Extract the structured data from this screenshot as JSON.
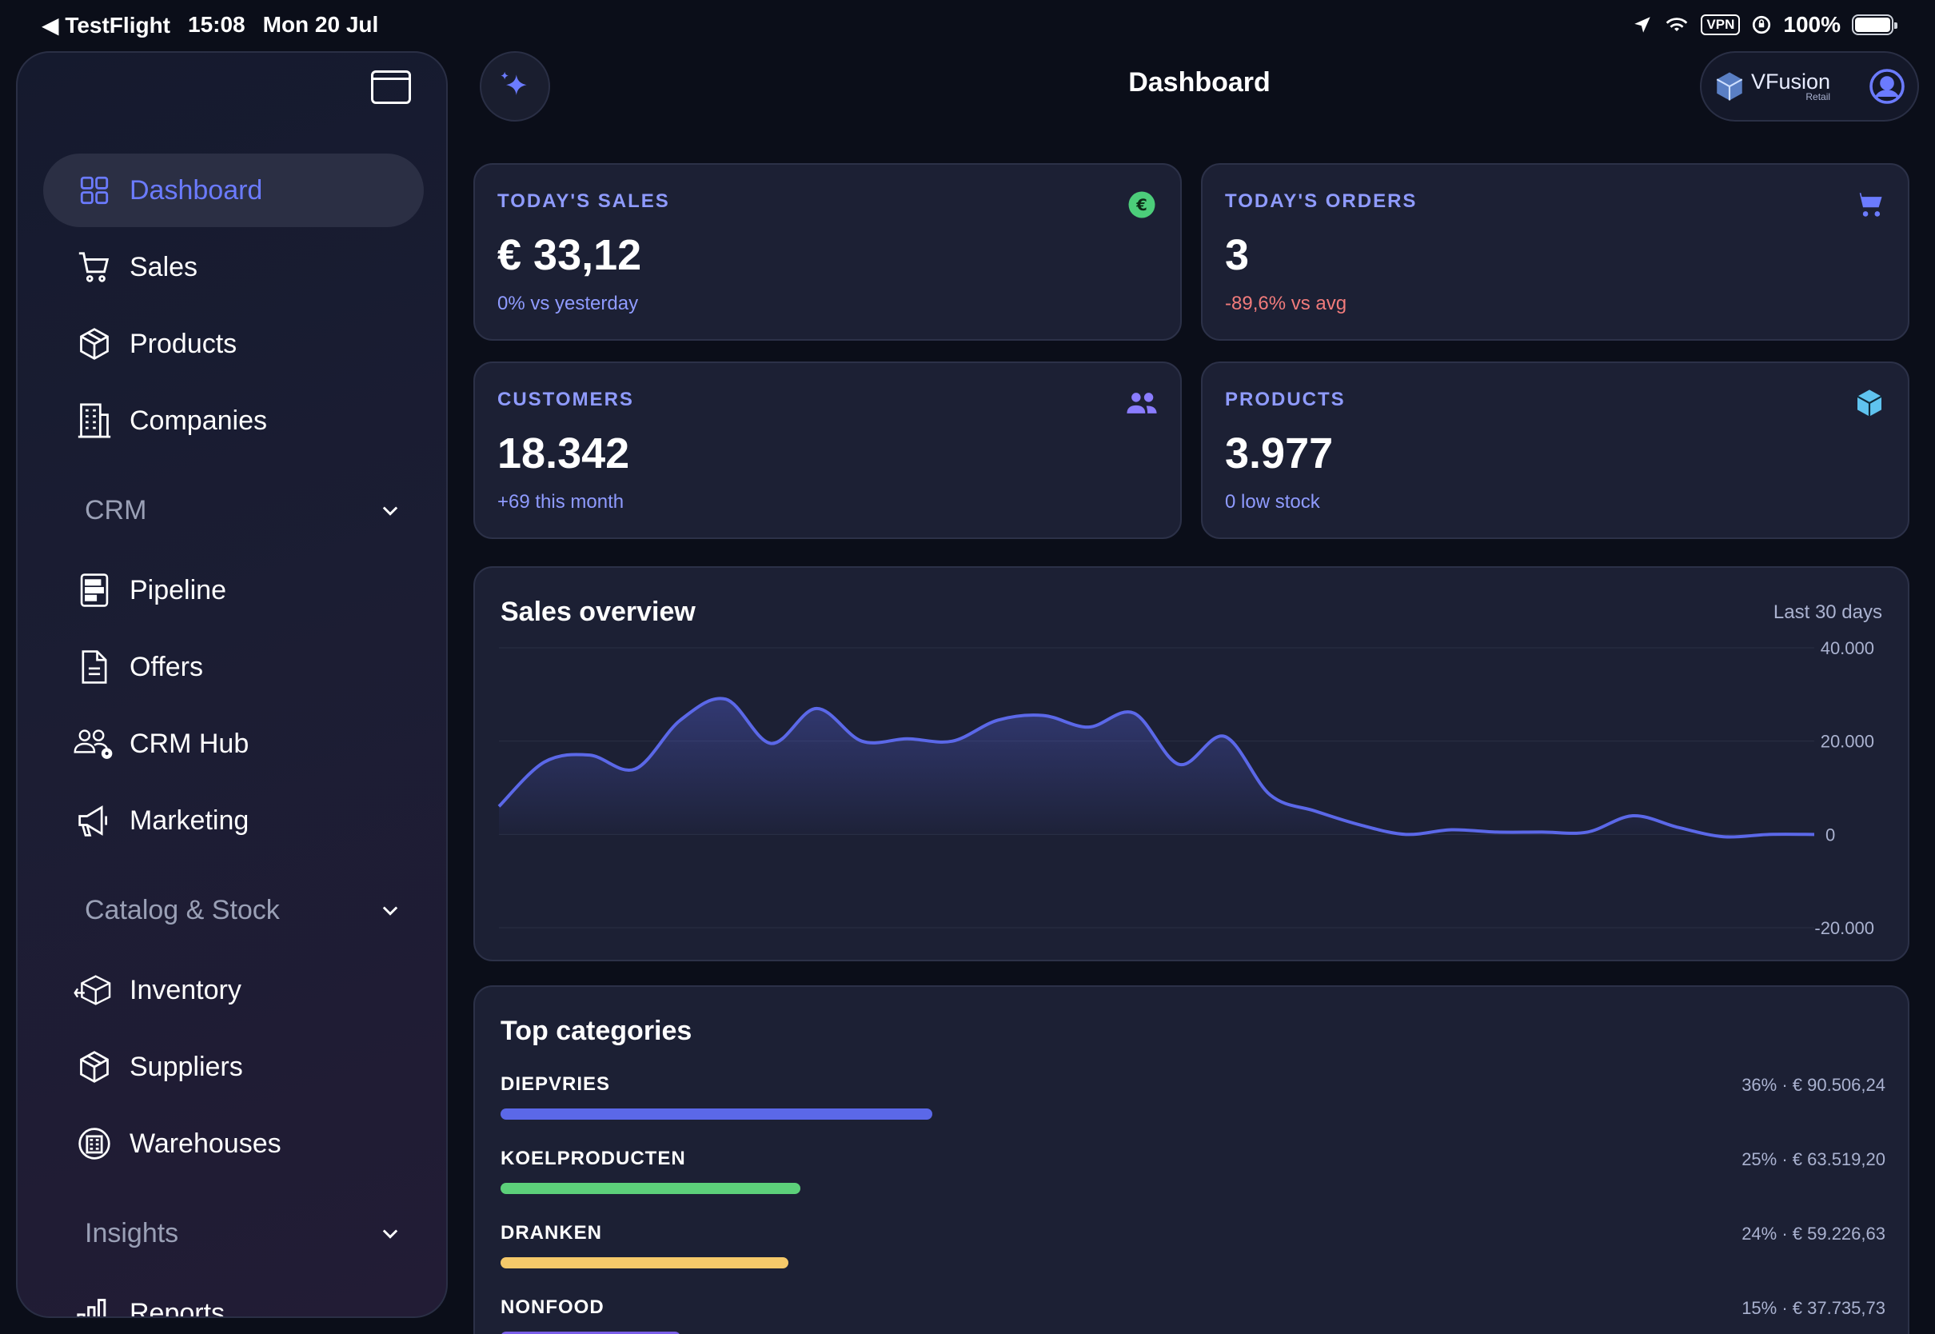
{
  "status_bar": {
    "back_app": "◀ TestFlight",
    "time": "15:08",
    "date": "Mon 20 Jul",
    "vpn": "VPN",
    "battery": "100%"
  },
  "header": {
    "title": "Dashboard",
    "brand_name": "VFusion",
    "brand_sub": "Retail"
  },
  "sidebar": {
    "items_top": [
      {
        "label": "Dashboard",
        "icon": "grid-icon",
        "active": true
      },
      {
        "label": "Sales",
        "icon": "cart-icon"
      },
      {
        "label": "Products",
        "icon": "box-icon"
      },
      {
        "label": "Companies",
        "icon": "building-icon"
      }
    ],
    "crm": {
      "label": "CRM",
      "items": [
        {
          "label": "Pipeline",
          "icon": "pipeline-icon"
        },
        {
          "label": "Offers",
          "icon": "document-icon"
        },
        {
          "label": "CRM Hub",
          "icon": "users-gear-icon"
        },
        {
          "label": "Marketing",
          "icon": "megaphone-icon"
        }
      ]
    },
    "catalog": {
      "label": "Catalog & Stock",
      "items": [
        {
          "label": "Inventory",
          "icon": "inventory-icon"
        },
        {
          "label": "Suppliers",
          "icon": "box-icon"
        },
        {
          "label": "Warehouses",
          "icon": "warehouse-icon"
        }
      ]
    },
    "insights": {
      "label": "Insights",
      "items": [
        {
          "label": "Reports",
          "icon": "bar-chart-icon"
        }
      ]
    }
  },
  "stats": {
    "sales": {
      "label": "TODAY'S SALES",
      "value": "€ 33,12",
      "sub": "0% vs yesterday",
      "icon": "euro-icon",
      "color": "#4ccd7a"
    },
    "orders": {
      "label": "TODAY'S ORDERS",
      "value": "3",
      "sub": "-89,6% vs avg",
      "icon": "cart-icon",
      "color": "#6b7bff"
    },
    "customers": {
      "label": "CUSTOMERS",
      "value": "18.342",
      "sub": "+69 this month",
      "icon": "users-icon",
      "color": "#8a7cff"
    },
    "products": {
      "label": "PRODUCTS",
      "value": "3.977",
      "sub": "0 low stock",
      "icon": "cube-icon",
      "color": "#5fc3ef"
    }
  },
  "chart": {
    "title": "Sales overview",
    "range": "Last 30 days"
  },
  "chart_data": {
    "type": "area",
    "title": "Sales overview",
    "xlabel": "",
    "ylabel": "",
    "ylim": [
      -20000,
      40000
    ],
    "yticks": [
      40000,
      20000,
      0,
      -20000
    ],
    "ytick_labels": [
      "40.000",
      "20.000",
      "0",
      "-20.000"
    ],
    "x": [
      1,
      2,
      3,
      4,
      5,
      6,
      7,
      8,
      9,
      10,
      11,
      12,
      13,
      14,
      15,
      16,
      17,
      18,
      19,
      20,
      21,
      22,
      23,
      24,
      25,
      26,
      27,
      28,
      29,
      30
    ],
    "series": [
      {
        "color": "#5b68e8",
        "values": [
          6000,
          15500,
          17000,
          14000,
          24500,
          29000,
          19500,
          27000,
          20000,
          20500,
          20000,
          24500,
          25500,
          23000,
          26000,
          15000,
          21000,
          8500,
          5000,
          2000,
          0,
          1000,
          500,
          500,
          500,
          4000,
          1500,
          -500,
          0,
          0
        ]
      }
    ]
  },
  "categories": {
    "title": "Top categories",
    "items": [
      {
        "name": "DIEPVRIES",
        "meta": "36% · € 90.506,24",
        "pct": 36,
        "color": "#5b68e8"
      },
      {
        "name": "KOELPRODUCTEN",
        "meta": "25% · € 63.519,20",
        "pct": 25,
        "color": "#5cd07a"
      },
      {
        "name": "DRANKEN",
        "meta": "24% · € 59.226,63",
        "pct": 24,
        "color": "#f5c96a"
      },
      {
        "name": "NONFOOD",
        "meta": "15% · € 37.735,73",
        "pct": 15,
        "color": "#7a5ee8"
      }
    ]
  }
}
